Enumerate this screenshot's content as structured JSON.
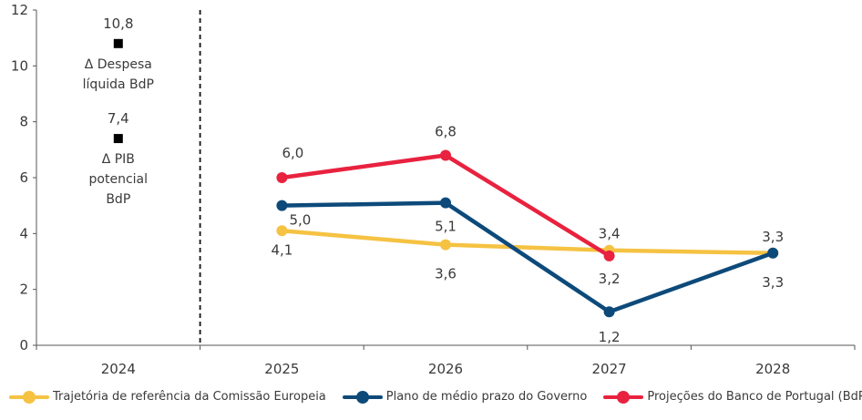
{
  "chart_data": {
    "type": "line",
    "title": "",
    "xlabel": "",
    "ylabel": "",
    "categories": [
      "2024",
      "2025",
      "2026",
      "2027",
      "2028"
    ],
    "ylim": [
      0,
      12
    ],
    "yticks": [
      "0",
      "2",
      "4",
      "6",
      "8",
      "10",
      "12"
    ],
    "grid": false,
    "legend_position": "bottom",
    "series": [
      {
        "name": "Trajetória de referência da Comissão Europeia",
        "color": "#f5c242",
        "values": [
          null,
          4.1,
          3.6,
          3.4,
          3.3
        ],
        "labels": [
          null,
          "4,1",
          "3,6",
          "3,4",
          "3,3"
        ]
      },
      {
        "name": "Plano de médio prazo do Governo",
        "color": "#0d4a7a",
        "values": [
          null,
          5.0,
          5.1,
          1.2,
          3.3
        ],
        "labels": [
          null,
          "5,0",
          "5,1",
          "1,2",
          "3,3"
        ]
      },
      {
        "name": "Projeções do Banco de Portugal (BdP)",
        "color": "#e8223f",
        "values": [
          null,
          6.0,
          6.8,
          3.2,
          null
        ],
        "labels": [
          null,
          "6,0",
          "6,8",
          "3,2",
          null
        ]
      }
    ],
    "annotations_2024": [
      {
        "value": 10.8,
        "label": "10,8",
        "text": [
          "Δ Despesa",
          "líquida BdP"
        ]
      },
      {
        "value": 7.4,
        "label": "7,4",
        "text": [
          "Δ PIB",
          "potencial",
          "BdP"
        ]
      }
    ],
    "marker_color": "#000000"
  }
}
